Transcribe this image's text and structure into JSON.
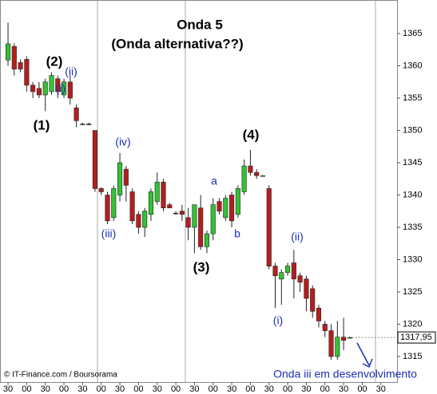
{
  "chart_data": {
    "type": "candlestick",
    "title": "Onda 5",
    "subtitle": "(Onda alternativa??)",
    "annotations": [
      "(1)",
      "(2)",
      "(i)",
      "(ii)",
      "(iii)",
      "(iv)",
      "(3)",
      "a",
      "b",
      "(4)",
      "(i)",
      "(ii)",
      "Onda iii em desenvolvimento"
    ],
    "source": "© IT-Finance.com / Boursorama",
    "up_color": "#33c233",
    "down_color": "#b41e1e",
    "x": [
      0,
      10,
      20,
      30,
      40,
      50,
      60,
      70,
      80,
      90,
      100,
      110,
      120,
      130,
      140,
      150,
      160,
      170,
      180,
      190,
      200,
      210,
      220,
      230,
      240,
      250,
      260,
      270,
      280,
      290,
      300,
      310,
      320,
      330,
      340,
      350,
      360,
      370,
      380,
      390,
      400,
      410,
      420,
      430,
      440,
      450,
      460,
      470,
      480,
      490,
      500,
      510,
      520,
      530,
      540,
      550
    ],
    "open": [
      1360.9,
      1363,
      1360.5,
      1361,
      1357,
      1356.5,
      1355.5,
      1356,
      1358,
      1355.5,
      1357.5,
      1353.5,
      1351,
      1351,
      1350,
      1341,
      1340,
      1336.5,
      1340,
      1344,
      1340.5,
      1337,
      1335,
      1337,
      1339,
      1342,
      1338.5,
      1337.2,
      1337.5,
      1336.5,
      1335,
      1338,
      1332,
      1334,
      1339,
      1336.5,
      1340,
      1337,
      1340.5,
      1344.5,
      1343.5,
      1343,
      1341,
      1329,
      1327,
      1328,
      1329.5,
      1327.5,
      1327,
      1325.5,
      1322.5,
      1320,
      1319,
      1315,
      1318,
      1317.95
    ],
    "high": [
      1366.7,
      1363.5,
      1361,
      1361.5,
      1357.5,
      1357.5,
      1358,
      1359,
      1358.5,
      1358,
      1358.5,
      1354,
      1351.2,
      1351.2,
      1350,
      1341.2,
      1340.5,
      1341.5,
      1346.5,
      1344.5,
      1341,
      1337.5,
      1338,
      1341,
      1343.5,
      1342.5,
      1338.8,
      1337.5,
      1338.5,
      1338,
      1338.5,
      1340,
      1334.5,
      1339.5,
      1339.5,
      1340,
      1340.5,
      1341.5,
      1345.5,
      1347,
      1344,
      1343.1,
      1341.5,
      1329.5,
      1328.5,
      1329.5,
      1331.5,
      1328,
      1327.5,
      1326,
      1323,
      1320.5,
      1320,
      1320.5,
      1321,
      1318.1
    ],
    "low": [
      1360,
      1358.5,
      1359,
      1356,
      1355,
      1355,
      1353,
      1355.5,
      1355,
      1355,
      1354,
      1350.5,
      1350.8,
      1350.8,
      1340.5,
      1340,
      1335.5,
      1336,
      1339,
      1339,
      1335.5,
      1334,
      1333.5,
      1336,
      1338.5,
      1337.5,
      1338,
      1337,
      1336,
      1333,
      1331,
      1331.5,
      1331,
      1333,
      1337,
      1336,
      1335,
      1336.5,
      1340,
      1343,
      1342.5,
      1342.9,
      1328.5,
      1322.5,
      1323,
      1327.5,
      1324,
      1325,
      1322,
      1321,
      1319.5,
      1318,
      1314.5,
      1314.5,
      1316,
      1317.8
    ],
    "close": [
      1363.4,
      1359.5,
      1359.5,
      1357,
      1356,
      1355.5,
      1357.5,
      1358.5,
      1356,
      1357.5,
      1355,
      1351.5,
      1351,
      1350.9,
      1341,
      1340.5,
      1336,
      1341,
      1345,
      1341.5,
      1336,
      1335,
      1337.5,
      1340.5,
      1342,
      1338,
      1338,
      1337.1,
      1337,
      1335,
      1338.5,
      1332,
      1334,
      1338.5,
      1337.5,
      1339.5,
      1336,
      1341,
      1344.5,
      1343.5,
      1343,
      1343,
      1329,
      1327.5,
      1328,
      1329,
      1327,
      1326.5,
      1324,
      1322,
      1320.5,
      1319,
      1315,
      1318,
      1317.5,
      1317.95
    ],
    "last_price": {
      "value": 1317.95,
      "label": "1317,95"
    },
    "xlim": [
      -12.9,
      626
    ],
    "ylim": [
      1311.05,
      1370.19
    ],
    "yticks": [
      1315,
      1320,
      1325,
      1330,
      1335,
      1340,
      1345,
      1350,
      1355,
      1360,
      1365
    ],
    "xticks": [
      {
        "value": 0,
        "label": "30"
      },
      {
        "value": 30,
        "label": "00"
      },
      {
        "value": 60,
        "label": "30"
      },
      {
        "value": 90,
        "label": "00"
      },
      {
        "value": 120,
        "label": "30"
      },
      {
        "value": 150,
        "label": "00"
      },
      {
        "value": 180,
        "label": "30"
      },
      {
        "value": 210,
        "label": "00"
      },
      {
        "value": 240,
        "label": "30"
      },
      {
        "value": 270,
        "label": "00"
      },
      {
        "value": 300,
        "label": "30"
      },
      {
        "value": 330,
        "label": "00"
      },
      {
        "value": 360,
        "label": "30"
      },
      {
        "value": 390,
        "label": "00"
      },
      {
        "value": 420,
        "label": "30"
      },
      {
        "value": 450,
        "label": "00"
      },
      {
        "value": 480,
        "label": "30"
      },
      {
        "value": 510,
        "label": "00"
      },
      {
        "value": 540,
        "label": "30"
      },
      {
        "value": 570,
        "label": "00"
      },
      {
        "value": 600,
        "label": "30"
      }
    ]
  }
}
